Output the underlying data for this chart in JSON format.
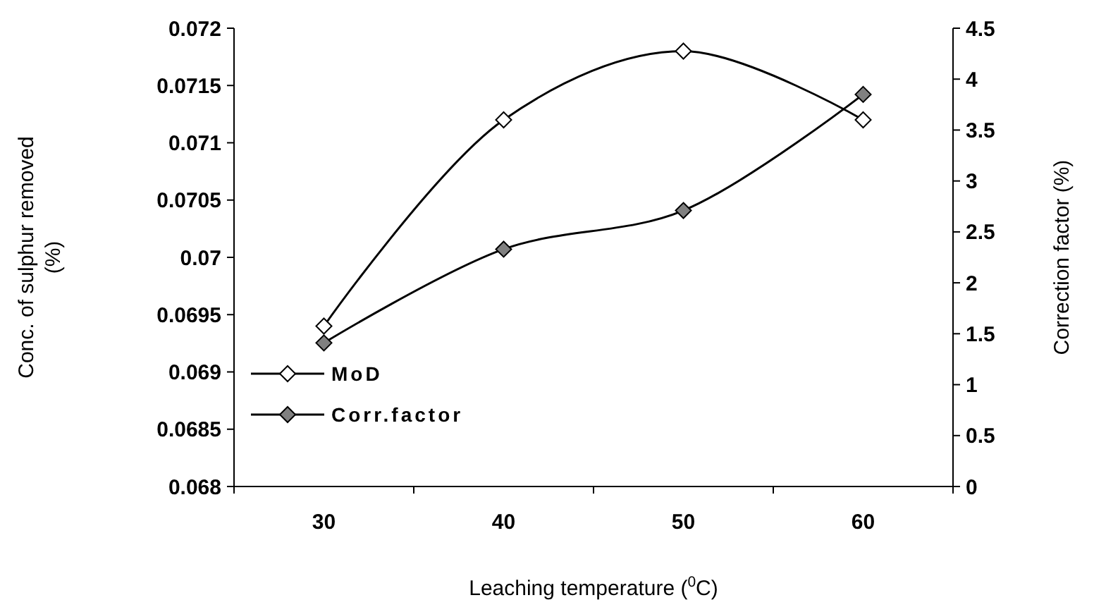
{
  "chart_data": {
    "type": "line",
    "categories": [
      "30",
      "40",
      "50",
      "60"
    ],
    "xlabel": "Leaching temperature ($^{0}$C)",
    "ylabel": "Conc. of sulphur removed (%)",
    "y2label": "Correction factor (%)",
    "series": [
      {
        "name": "MoD",
        "color": "#ffffff",
        "values": [
          0.0694,
          0.0712,
          0.0718,
          0.0712
        ]
      },
      {
        "name": "Corr.factor",
        "color": "#808080",
        "axis": "y2",
        "values": [
          1.41,
          2.33,
          2.71,
          3.85
        ]
      }
    ],
    "ylim": [
      0.068,
      0.072
    ],
    "yticks": [
      0.068,
      0.0685,
      0.069,
      0.0695,
      0.07,
      0.0705,
      0.071,
      0.0715,
      0.072
    ],
    "y2lim": [
      0,
      4.5
    ],
    "y2ticks": [
      0,
      0.5,
      1,
      1.5,
      2,
      2.5,
      3,
      3.5,
      4,
      4.5
    ],
    "marker": "diamond",
    "line_style": "solid",
    "legend": "bottom left",
    "grid": false
  }
}
